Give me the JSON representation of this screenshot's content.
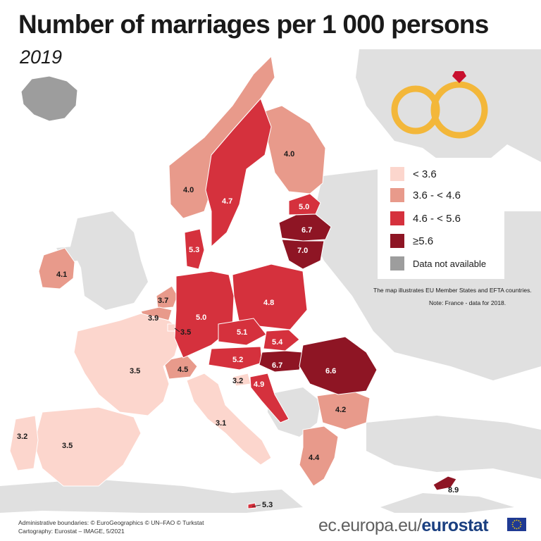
{
  "title": "Number of marriages per 1 000 persons",
  "subtitle": "2019",
  "legend": [
    {
      "label": "< 3.6",
      "color": "#fcd6cd"
    },
    {
      "label": "3.6 - < 4.6",
      "color": "#e89a8b"
    },
    {
      "label": "4.6 - < 5.6",
      "color": "#d5313d"
    },
    {
      "label": "≥5.6",
      "color": "#8e1524"
    },
    {
      "label": "Data not available",
      "color": "#9d9d9d"
    }
  ],
  "notes": {
    "scope": "The map illustrates EU Member States and EFTA countries.",
    "france": "Note: France - data for 2018."
  },
  "footer": {
    "boundaries": "Administrative boundaries: © EuroGeographics © UN–FAO © Turkstat",
    "cartography": "Cartography: Eurostat – IMAGE, 5/2021"
  },
  "brand": {
    "url": "ec.europa.eu/",
    "name": "eurostat"
  },
  "map_values": {
    "iceland": "",
    "ireland": "4.1",
    "norway": "4.0",
    "sweden": "4.7",
    "finland": "4.0",
    "estonia": "5.0",
    "latvia": "6.7",
    "lithuania": "7.0",
    "denmark": "5.3",
    "netherlands": "3.7",
    "belgium": "3.9",
    "luxembourg": "3.5",
    "germany": "5.0",
    "poland": "4.8",
    "czechia": "5.1",
    "slovakia": "5.4",
    "austria": "5.2",
    "hungary": "6.7",
    "romania": "6.6",
    "france": "3.5",
    "switzerland": "4.5",
    "slovenia": "3.2",
    "croatia": "4.9",
    "bulgaria": "4.2",
    "greece": "4.4",
    "italy": "3.1",
    "portugal": "3.2",
    "spain": "3.5",
    "malta": "5.3",
    "cyprus": "8.9"
  }
}
